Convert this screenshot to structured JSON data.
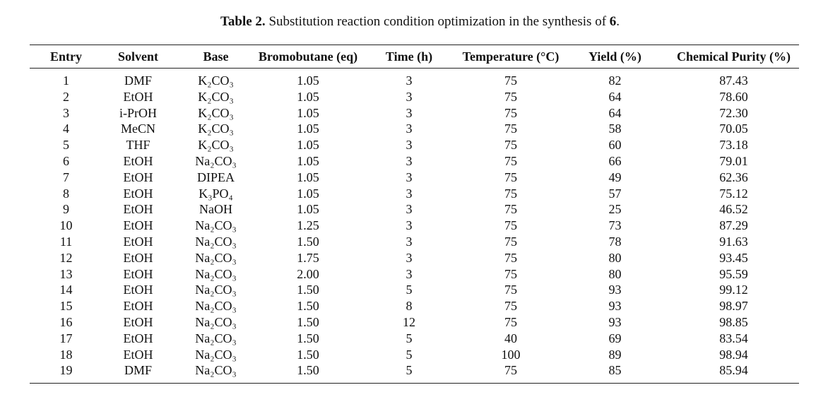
{
  "caption": {
    "label": "Table 2.",
    "text": "Substitution reaction condition optimization in the synthesis of",
    "compound": "6",
    "end": "."
  },
  "table": {
    "header": [
      "Entry",
      "Solvent",
      "Base",
      "Bromobutane (eq)",
      "Time (h)",
      "Temperature (°C)",
      "Yield (%)",
      "Chemical Purity (%)"
    ],
    "rows": [
      [
        "1",
        "DMF",
        "K₂CO₃",
        "1.05",
        "3",
        "75",
        "82",
        "87.43"
      ],
      [
        "2",
        "EtOH",
        "K₂CO₃",
        "1.05",
        "3",
        "75",
        "64",
        "78.60"
      ],
      [
        "3",
        "i-PrOH",
        "K₂CO₃",
        "1.05",
        "3",
        "75",
        "64",
        "72.30"
      ],
      [
        "4",
        "MeCN",
        "K₂CO₃",
        "1.05",
        "3",
        "75",
        "58",
        "70.05"
      ],
      [
        "5",
        "THF",
        "K₂CO₃",
        "1.05",
        "3",
        "75",
        "60",
        "73.18"
      ],
      [
        "6",
        "EtOH",
        "Na₂CO₃",
        "1.05",
        "3",
        "75",
        "66",
        "79.01"
      ],
      [
        "7",
        "EtOH",
        "DIPEA",
        "1.05",
        "3",
        "75",
        "49",
        "62.36"
      ],
      [
        "8",
        "EtOH",
        "K₃PO₄",
        "1.05",
        "3",
        "75",
        "57",
        "75.12"
      ],
      [
        "9",
        "EtOH",
        "NaOH",
        "1.05",
        "3",
        "75",
        "25",
        "46.52"
      ],
      [
        "10",
        "EtOH",
        "Na₂CO₃",
        "1.25",
        "3",
        "75",
        "73",
        "87.29"
      ],
      [
        "11",
        "EtOH",
        "Na₂CO₃",
        "1.50",
        "3",
        "75",
        "78",
        "91.63"
      ],
      [
        "12",
        "EtOH",
        "Na₂CO₃",
        "1.75",
        "3",
        "75",
        "80",
        "93.45"
      ],
      [
        "13",
        "EtOH",
        "Na₂CO₃",
        "2.00",
        "3",
        "75",
        "80",
        "95.59"
      ],
      [
        "14",
        "EtOH",
        "Na₂CO₃",
        "1.50",
        "5",
        "75",
        "93",
        "99.12"
      ],
      [
        "15",
        "EtOH",
        "Na₂CO₃",
        "1.50",
        "8",
        "75",
        "93",
        "98.97"
      ],
      [
        "16",
        "EtOH",
        "Na₂CO₃",
        "1.50",
        "12",
        "75",
        "93",
        "98.85"
      ],
      [
        "17",
        "EtOH",
        "Na₂CO₃",
        "1.50",
        "5",
        "40",
        "69",
        "83.54"
      ],
      [
        "18",
        "EtOH",
        "Na₂CO₃",
        "1.50",
        "5",
        "100",
        "89",
        "98.94"
      ],
      [
        "19",
        "DMF",
        "Na₂CO₃",
        "1.50",
        "5",
        "75",
        "85",
        "85.94"
      ]
    ]
  }
}
